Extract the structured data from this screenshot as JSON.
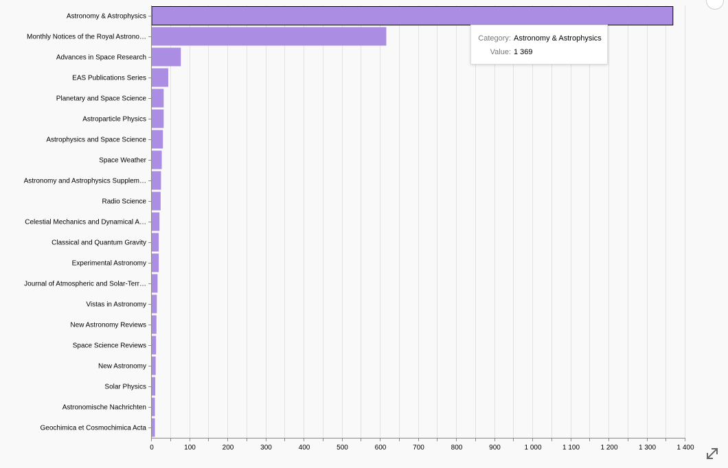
{
  "chart_data": {
    "type": "bar",
    "orientation": "horizontal",
    "categories": [
      "Astronomy & Astrophysics",
      "Monthly Notices of the Royal Astrono…",
      "Advances in Space Research",
      "EAS Publications Series",
      "Planetary and Space Science",
      "Astroparticle Physics",
      "Astrophysics and Space Science",
      "Space Weather",
      "Astronomy and Astrophysics Supplem…",
      "Radio Science",
      "Celestial Mechanics and Dynamical A…",
      "Classical and Quantum Gravity",
      "Experimental Astronomy",
      "Journal of Atmospheric and Solar-Terr…",
      "Vistas in Astronomy",
      "New Astronomy Reviews",
      "Space Science Reviews",
      "New Astronomy",
      "Solar Physics",
      "Astronomische Nachrichten",
      "Geochimica et Cosmochimica Acta"
    ],
    "values": [
      1369,
      617,
      78,
      45,
      33,
      33,
      31,
      28,
      26,
      25,
      22,
      20,
      20,
      17,
      15,
      14,
      13,
      12,
      11,
      10,
      10
    ],
    "xlim": [
      0,
      1400
    ],
    "xticks": [
      0,
      100,
      200,
      300,
      400,
      500,
      600,
      700,
      800,
      900,
      1000,
      1100,
      1200,
      1300,
      1400
    ],
    "xtick_labels": [
      "0",
      "100",
      "200",
      "300",
      "400",
      "500",
      "600",
      "700",
      "800",
      "900",
      "1 000",
      "1 100",
      "1 200",
      "1 300",
      "1 400"
    ],
    "grid": true,
    "highlighted_index": 0,
    "title": "",
    "xlabel": "",
    "ylabel": ""
  },
  "tooltip": {
    "category_key": "Category:",
    "category_value": "Astronomy & Astrophysics",
    "value_key": "Value:",
    "value_value": "1 369"
  },
  "colors": {
    "bar": "#ab8ee3",
    "bar_highlight_stroke": "#000000",
    "grid": "#e2e2e2",
    "background": "#f9f9f9",
    "axis": "#888888"
  },
  "icons": {
    "expand": "expand-arrows-icon",
    "corner": "circle-button-icon"
  }
}
